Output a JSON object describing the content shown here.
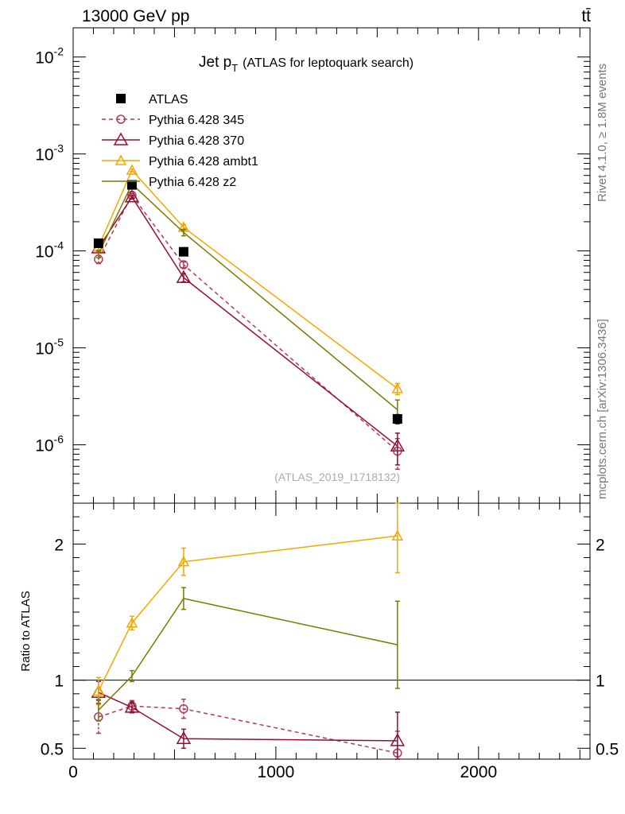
{
  "header": {
    "energy_label": "13000 GeV pp",
    "process_label": "tt̄"
  },
  "side_text": {
    "rivet": "Rivet 4.1.0, ≥ 1.8M events",
    "site": "mcplots.cern.ch [arXiv:1306.3436]"
  },
  "chart_data": {
    "type": "line",
    "title": "Jet p",
    "title_sub": "T",
    "title_rest": "(ATLAS for leptoquark search)",
    "analysis_id": "(ATLAS_2019_I1718132)",
    "x_range": [
      0,
      2550
    ],
    "main": {
      "yscale": "log",
      "ylim": [
        2.5e-07,
        0.02
      ],
      "y_ticks": [
        {
          "value": 0.01,
          "label": "10",
          "exp": "-2"
        },
        {
          "value": 0.001,
          "label": "10",
          "exp": "-3"
        },
        {
          "value": 0.0001,
          "label": "10",
          "exp": "-4"
        },
        {
          "value": 1e-05,
          "label": "10",
          "exp": "-5"
        },
        {
          "value": 1e-06,
          "label": "10",
          "exp": "-6"
        }
      ],
      "series": [
        {
          "name": "ATLAS",
          "color": "#000000",
          "marker": "square",
          "line": "none",
          "x": [
            125,
            290,
            545,
            1600
          ],
          "y": [
            0.00012,
            0.00048,
            9.8e-05,
            1.85e-06
          ],
          "err": [
            [
              1.1e-05,
              1.1e-05
            ],
            [
              3e-05,
              3e-05
            ],
            [
              7e-06,
              7e-06
            ],
            [
              2e-07,
              2e-07
            ]
          ]
        },
        {
          "name": "Pythia 6.428 345",
          "color": "#b03a54",
          "marker": "circle",
          "line": "dashed",
          "x": [
            125,
            290,
            545,
            1600
          ],
          "y": [
            8.2e-05,
            0.000375,
            7.2e-05,
            8.6e-07
          ],
          "err": [
            [
              8e-06,
              8e-06
            ],
            [
              1.4e-05,
              1.4e-05
            ],
            [
              5e-06,
              5e-06
            ],
            [
              3e-07,
              3e-07
            ]
          ]
        },
        {
          "name": "Pythia 6.428 370",
          "color": "#950e2e",
          "marker": "triangle",
          "line": "solid",
          "x": [
            125,
            290,
            545,
            1600
          ],
          "y": [
            0.000107,
            0.00036,
            5.3e-05,
            9.7e-07
          ],
          "err": [
            [
              8e-06,
              8e-06
            ],
            [
              1.4e-05,
              1.4e-05
            ],
            [
              5e-06,
              5e-06
            ],
            [
              3.5e-07,
              3.5e-07
            ]
          ]
        },
        {
          "name": "Pythia 6.428 ambt1",
          "color": "#f2a800",
          "marker": "triangle-small",
          "line": "solid",
          "x": [
            125,
            290,
            545,
            1600
          ],
          "y": [
            0.00011,
            0.00068,
            0.000175,
            3.8e-06
          ],
          "err": [
            [
              8e-06,
              8e-06
            ],
            [
              2e-05,
              2e-05
            ],
            [
              1.2e-05,
              1.2e-05
            ],
            [
              5e-07,
              5e-07
            ]
          ]
        },
        {
          "name": "Pythia 6.428 z2",
          "color": "#7a7a00",
          "marker": "none",
          "line": "solid",
          "x": [
            125,
            290,
            545,
            1600
          ],
          "y": [
            9.3e-05,
            0.00049,
            0.000155,
            2.3e-06
          ],
          "err": [
            [
              8e-06,
              8e-06
            ],
            [
              1.6e-05,
              1.6e-05
            ],
            [
              1.2e-05,
              1.2e-05
            ],
            [
              6e-07,
              6e-07
            ]
          ]
        }
      ]
    },
    "ratio": {
      "ylabel": "Ratio to ATLAS",
      "ylim": [
        0.42,
        2.3
      ],
      "y_ticks_major": [
        {
          "value": 0.5,
          "label": "0.5"
        },
        {
          "value": 1,
          "label": "1"
        },
        {
          "value": 2,
          "label": "2"
        }
      ],
      "reference": 1,
      "series": [
        {
          "name": "Pythia 6.428 345",
          "color": "#b03a54",
          "marker": "circle",
          "line": "dashed",
          "x": [
            125,
            290,
            545,
            1600
          ],
          "y": [
            0.73,
            0.81,
            0.79,
            0.465
          ],
          "err": [
            [
              0.12,
              0.12
            ],
            [
              0.04,
              0.04
            ],
            [
              0.07,
              0.07
            ],
            [
              0.16,
              0.16
            ]
          ]
        },
        {
          "name": "Pythia 6.428 370",
          "color": "#950e2e",
          "marker": "triangle",
          "line": "solid",
          "x": [
            125,
            290,
            545,
            1600
          ],
          "y": [
            0.91,
            0.8,
            0.57,
            0.555
          ],
          "err": [
            [
              0.08,
              0.08
            ],
            [
              0.04,
              0.04
            ],
            [
              0.07,
              0.07
            ],
            [
              0.21,
              0.21
            ]
          ]
        },
        {
          "name": "Pythia 6.428 ambt1",
          "color": "#f2a800",
          "marker": "triangle-small",
          "line": "solid",
          "x": [
            125,
            290,
            545,
            1600
          ],
          "y": [
            0.92,
            1.42,
            1.87,
            2.06
          ],
          "err": [
            [
              0.1,
              0.1
            ],
            [
              0.05,
              0.05
            ],
            [
              0.1,
              0.1
            ],
            [
              0.27,
              0.27
            ]
          ]
        },
        {
          "name": "Pythia 6.428 z2",
          "color": "#7a7a00",
          "marker": "none",
          "line": "solid",
          "x": [
            125,
            290,
            545,
            1600
          ],
          "y": [
            0.78,
            1.03,
            1.6,
            1.26
          ],
          "err": [
            [
              0.08,
              0.08
            ],
            [
              0.04,
              0.04
            ],
            [
              0.08,
              0.08
            ],
            [
              0.32,
              0.32
            ]
          ]
        }
      ]
    },
    "x_ticks": [
      {
        "value": 0,
        "label": "0"
      },
      {
        "value": 1000,
        "label": "1000"
      },
      {
        "value": 2000,
        "label": "2000"
      }
    ]
  }
}
